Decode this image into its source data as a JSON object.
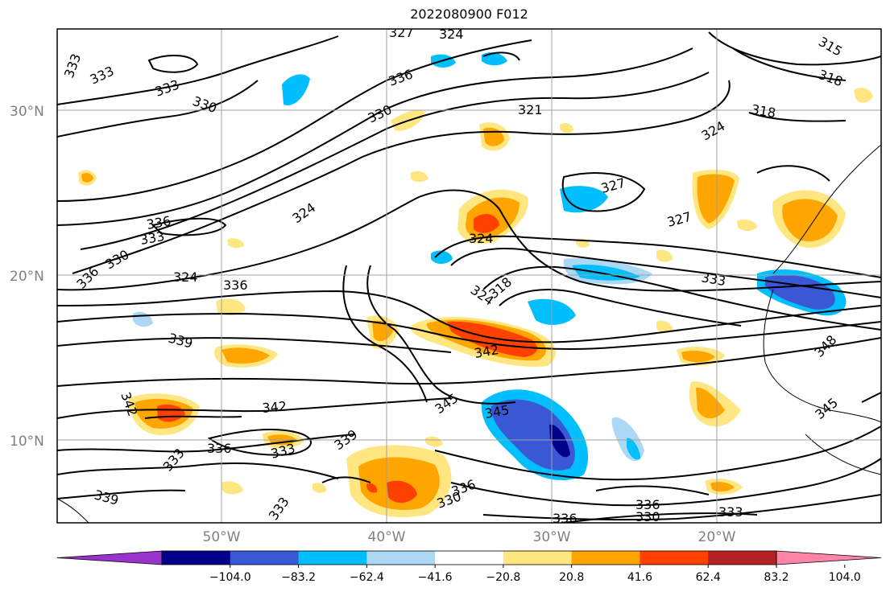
{
  "title": "2022080900 F012",
  "lat_labels": [
    "30°N",
    "20°N",
    "10°N"
  ],
  "lon_labels": [
    "50°W",
    "40°W",
    "30°W",
    "20°W"
  ],
  "colorbar": {
    "ticks": [
      "−104.0",
      "−83.2",
      "−62.4",
      "−41.6",
      "−20.8",
      "20.8",
      "41.6",
      "62.4",
      "83.2",
      "104.0"
    ],
    "colors": [
      "#9a32cd",
      "#00008b",
      "#3a58d6",
      "#00bfff",
      "#add8f5",
      "#ffffff",
      "#ffe680",
      "#ffa500",
      "#ff4000",
      "#b22222",
      "#ff85a8"
    ]
  },
  "contour_labels": [
    "327",
    "324",
    "333",
    "315",
    "318",
    "333",
    "336",
    "333",
    "330",
    "330",
    "321",
    "318",
    "324",
    "324",
    "327",
    "327",
    "336",
    "333",
    "324",
    "330",
    "336",
    "324",
    "336",
    "324",
    "318",
    "333",
    "339",
    "342",
    "342",
    "345",
    "345",
    "348",
    "342",
    "345",
    "336",
    "333",
    "333",
    "339",
    "339",
    "333",
    "336",
    "330",
    "336",
    "336",
    "330",
    "333"
  ]
}
